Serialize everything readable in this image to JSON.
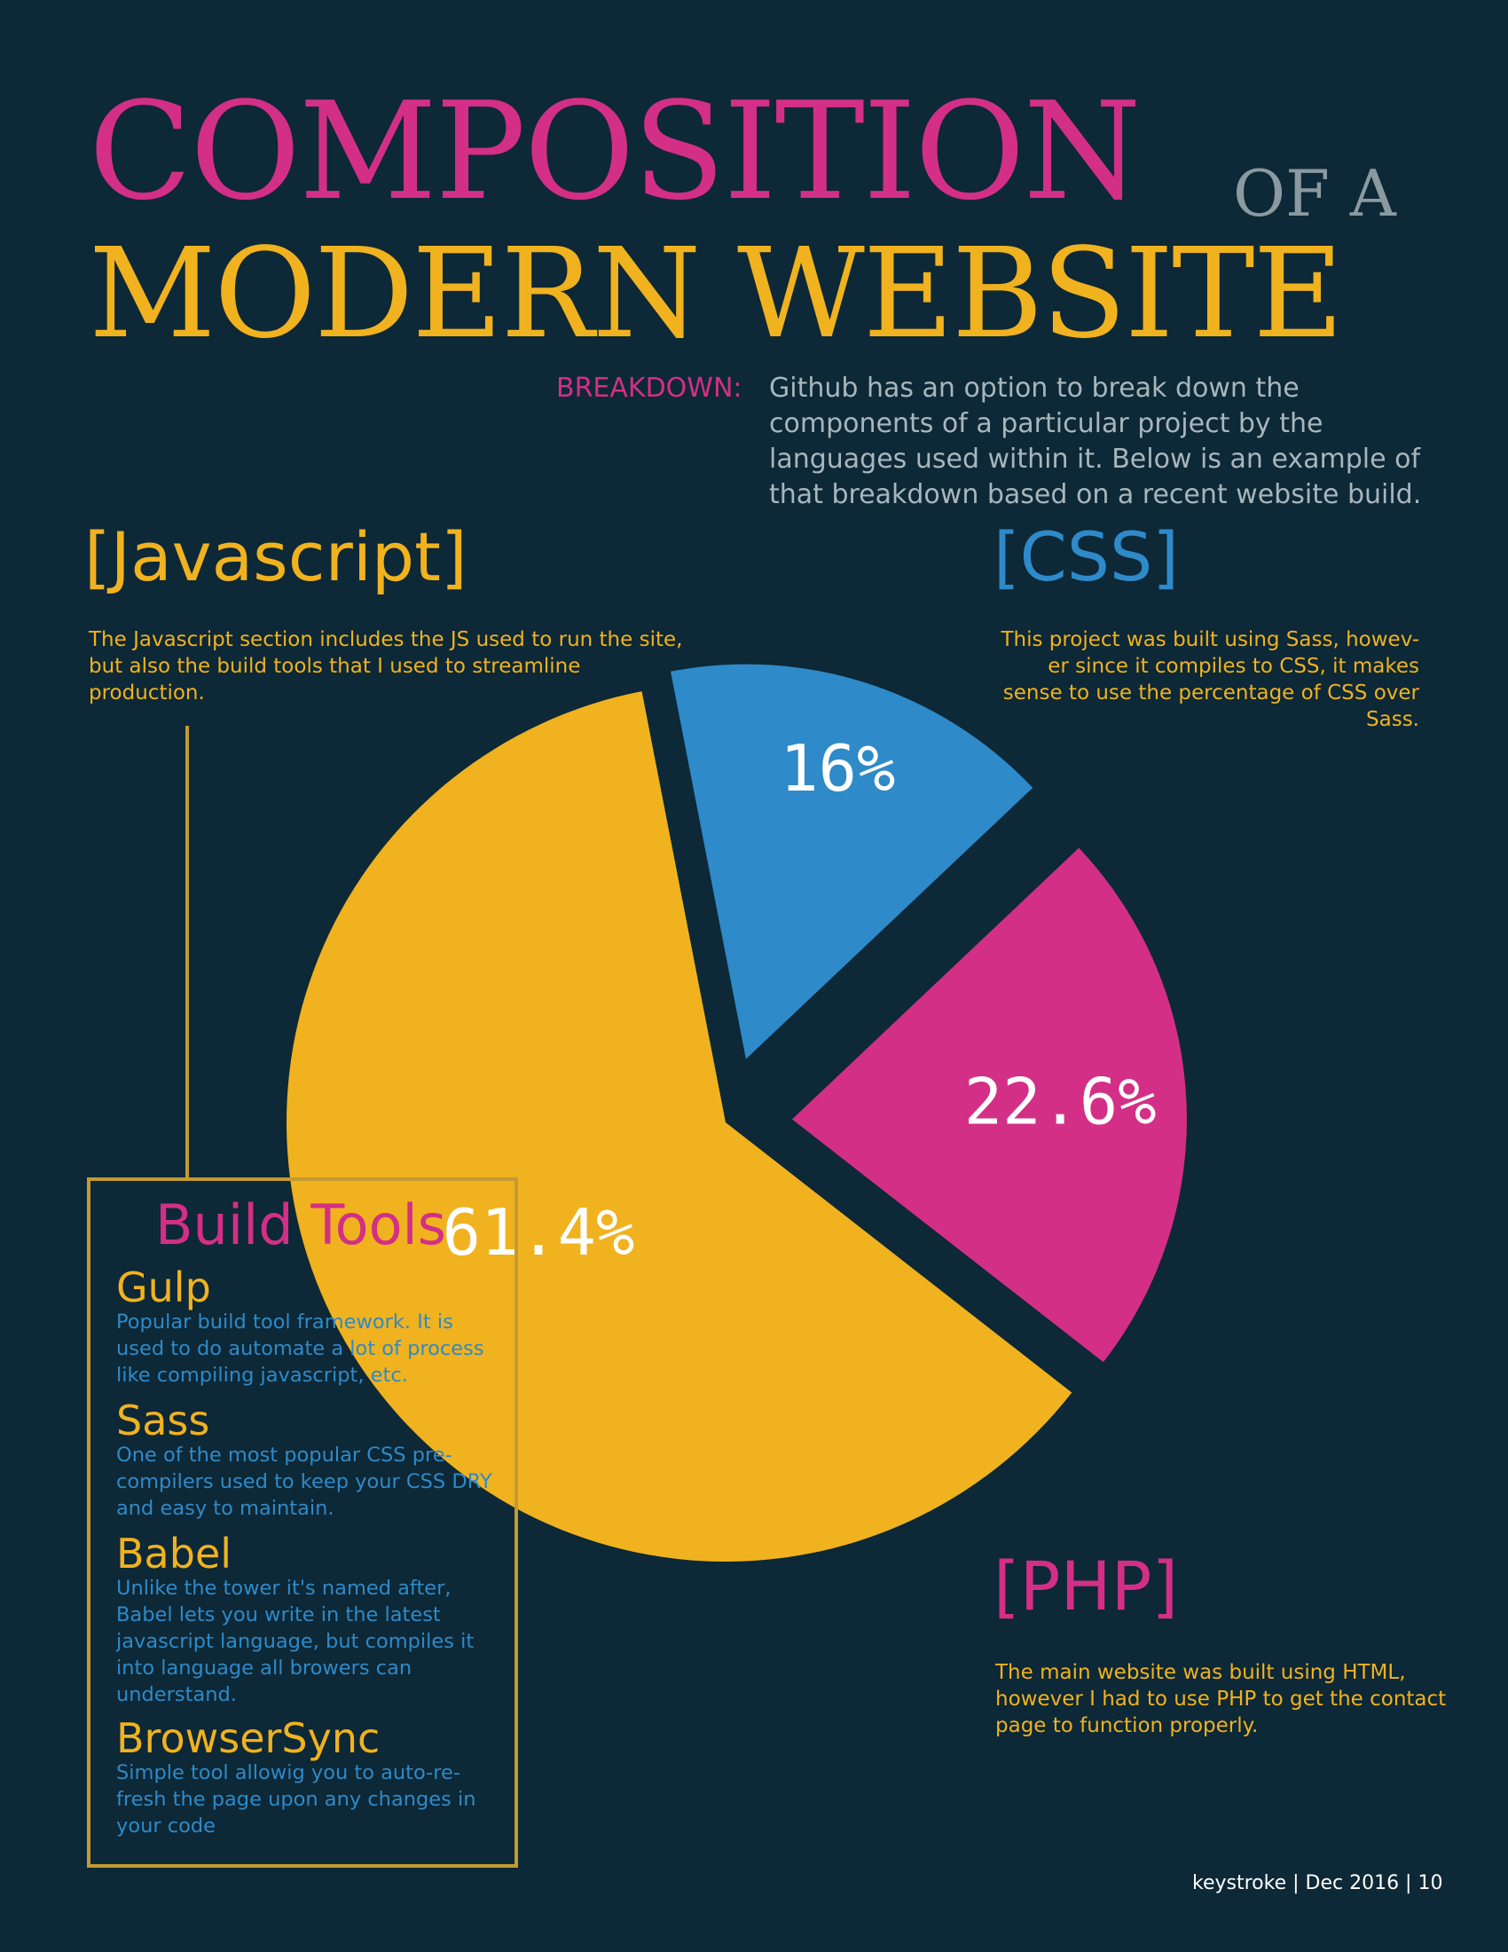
{
  "header": {
    "title_line1": "COMPOSITION",
    "title_of": "OF A",
    "title_line2": "MODERN WEBSITE",
    "breakdown_label": "BREAKDOWN:",
    "breakdown_text": "Github has an option to break down the components of a particular project by the languages used within it. Below is an example of that breakdown based on a recent website build."
  },
  "sections": {
    "javascript": {
      "title": "[Javascript]",
      "desc": "The Javascript section includes the JS used to run the site, but also the build tools that I used to streamline production."
    },
    "css": {
      "title": "[CSS]",
      "desc": "This project was built using Sass, howev-er since it compiles to CSS, it makes sense to use the percentage of CSS over Sass."
    },
    "php": {
      "title": "[PHP]",
      "desc": "The main website was built using HTML, however I had to use PHP to get the contact page to function properly."
    }
  },
  "build_tools": {
    "title": "Build Tools",
    "tools": [
      {
        "name": "Gulp",
        "desc": "Popular build tool framework. It is used to do automate a lot of process like compiling javascript, etc."
      },
      {
        "name": "Sass",
        "desc": "One of the most popular CSS pre-compilers used to keep your CSS DRY and easy to maintain."
      },
      {
        "name": "Babel",
        "desc": "Unlike the tower it's named after, Babel lets you write in the latest javascript language, but compiles it into language all browers can understand."
      },
      {
        "name": "BrowserSync",
        "desc": "Simple tool allowig you to auto-re-fresh the page upon any changes in your code"
      }
    ]
  },
  "footer": "keystroke | Dec 2016 | 10",
  "chart_data": {
    "type": "pie",
    "title": "",
    "slices": [
      {
        "label": "CSS",
        "value": 16,
        "display": "16%",
        "color": "#2e8ac9"
      },
      {
        "label": "PHP",
        "value": 22.6,
        "display": "22.6%",
        "color": "#d32f86"
      },
      {
        "label": "Javascript",
        "value": 61.4,
        "display": "61.4%",
        "color": "#f0b21f"
      }
    ]
  },
  "colors": {
    "background": "#0d2836",
    "pink": "#d32f86",
    "yellow": "#f0b21f",
    "blue": "#2e8ac9",
    "gray": "#8a9aa0"
  }
}
